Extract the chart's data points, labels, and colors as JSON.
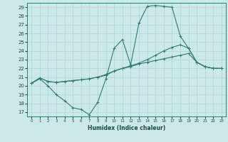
{
  "xlabel": "Humidex (Indice chaleur)",
  "xlim": [
    -0.5,
    23.5
  ],
  "ylim": [
    16.5,
    29.5
  ],
  "yticks": [
    17,
    18,
    19,
    20,
    21,
    22,
    23,
    24,
    25,
    26,
    27,
    28,
    29
  ],
  "xticks": [
    0,
    1,
    2,
    3,
    4,
    5,
    6,
    7,
    8,
    9,
    10,
    11,
    12,
    13,
    14,
    15,
    16,
    17,
    18,
    19,
    20,
    21,
    22,
    23
  ],
  "bg_color": "#cde8e8",
  "grid_color": "#b0d8d8",
  "line_color": "#2e7d6e",
  "lines": [
    {
      "x": [
        0,
        1,
        2,
        3,
        4,
        5,
        6,
        7,
        8,
        9,
        10,
        11,
        12,
        13,
        14,
        15,
        16,
        17,
        18,
        19,
        20,
        21,
        22,
        23
      ],
      "y": [
        20.3,
        20.8,
        20.0,
        19.0,
        18.3,
        17.5,
        17.3,
        16.7,
        18.1,
        20.8,
        24.3,
        25.3,
        22.4,
        27.2,
        29.1,
        29.2,
        29.1,
        29.0,
        25.7,
        24.3,
        22.7,
        22.2,
        22.0,
        22.0
      ]
    },
    {
      "x": [
        0,
        1,
        2,
        3,
        4,
        5,
        6,
        7,
        8,
        9,
        10,
        11,
        12,
        13,
        14,
        15,
        16,
        17,
        18,
        19,
        20,
        21,
        22,
        23
      ],
      "y": [
        20.3,
        20.9,
        20.5,
        20.4,
        20.5,
        20.6,
        20.7,
        20.8,
        21.0,
        21.2,
        21.7,
        22.0,
        22.3,
        22.6,
        23.0,
        23.5,
        24.0,
        24.4,
        24.7,
        24.3,
        22.7,
        22.2,
        22.0,
        22.0
      ]
    },
    {
      "x": [
        0,
        1,
        2,
        3,
        4,
        5,
        6,
        7,
        8,
        9,
        10,
        11,
        12,
        13,
        14,
        15,
        16,
        17,
        18,
        19,
        20,
        21,
        22,
        23
      ],
      "y": [
        20.3,
        20.9,
        20.5,
        20.4,
        20.5,
        20.6,
        20.7,
        20.8,
        21.0,
        21.3,
        21.7,
        22.0,
        22.2,
        22.5,
        22.7,
        22.9,
        23.1,
        23.3,
        23.5,
        23.7,
        22.7,
        22.2,
        22.0,
        22.0
      ]
    }
  ]
}
